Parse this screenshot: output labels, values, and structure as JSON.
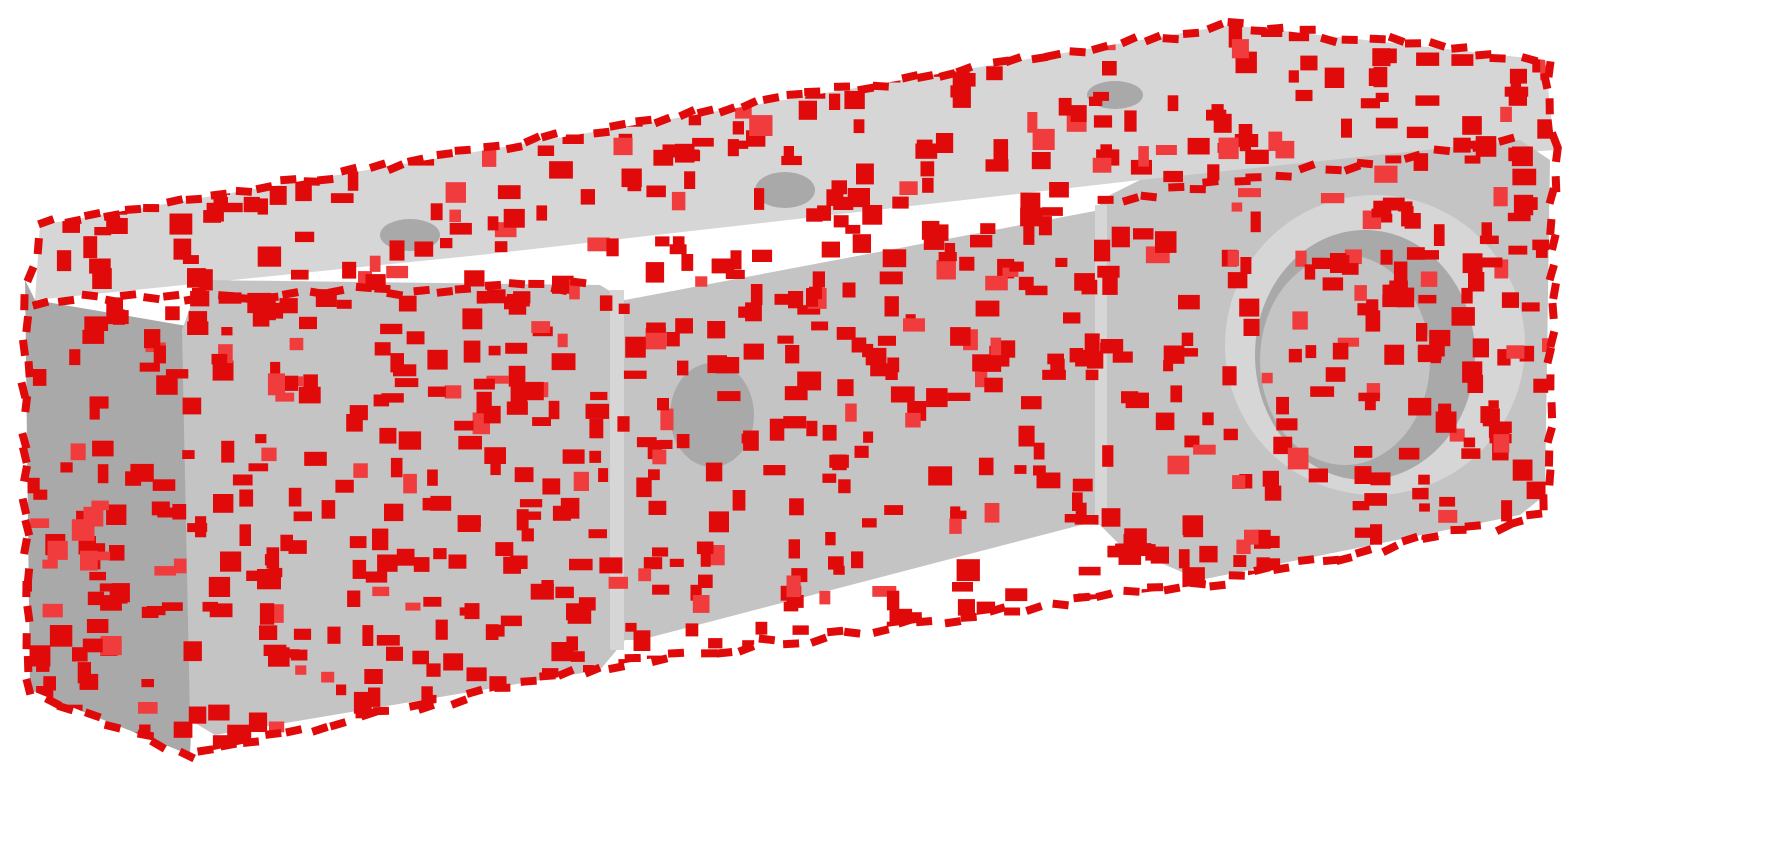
{
  "scene": {
    "subject": "mesh-render",
    "background_color": "#ffffff",
    "surface_color": "#c4c4c4",
    "surface_shadow_color": "#a9a9a9",
    "surface_light_color": "#d6d6d6",
    "patch_color": "#e00a0a",
    "patch_alt_color": "#f03c3c",
    "features": [
      "rectangular-block",
      "front-left-raised-cube",
      "right-raised-cube",
      "cylindrical-bore",
      "small-dimple"
    ]
  }
}
